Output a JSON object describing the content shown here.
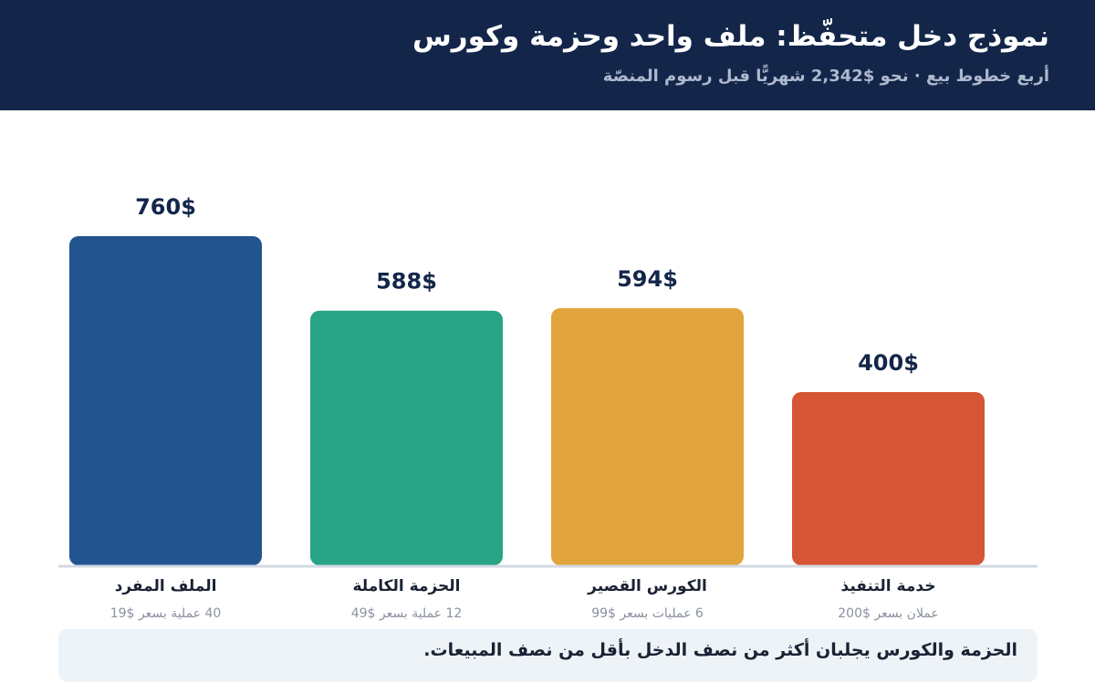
{
  "header": {
    "title": "نموذج دخل متحفّظ: ملف واحد وحزمة وكورس",
    "subtitle": "أربع خطوط بيع · نحو $2,342 شهريًّا قبل رسوم المنصّة"
  },
  "chart_data": {
    "type": "bar",
    "categories": [
      "الملف المفرد",
      "الحزمة الكاملة",
      "الكورس القصير",
      "خدمة التنفيذ"
    ],
    "values": [
      760,
      588,
      594,
      400
    ],
    "value_labels": [
      "760$",
      "588$",
      "594$",
      "400$"
    ],
    "category_notes": [
      "40 عملية بسعر $19",
      "12 عملية بسعر $49",
      "6 عمليات بسعر $99",
      "عملان بسعر $200"
    ],
    "colors": [
      "#22558f",
      "#27a585",
      "#e2a43c",
      "#d55535"
    ],
    "ylim": [
      0,
      760
    ],
    "grid": false,
    "xlabel": "",
    "ylabel": ""
  },
  "note": {
    "text": "الحزمة والكورس يجلبان أكثر من نصف الدخل بأقل من نصف المبيعات."
  }
}
